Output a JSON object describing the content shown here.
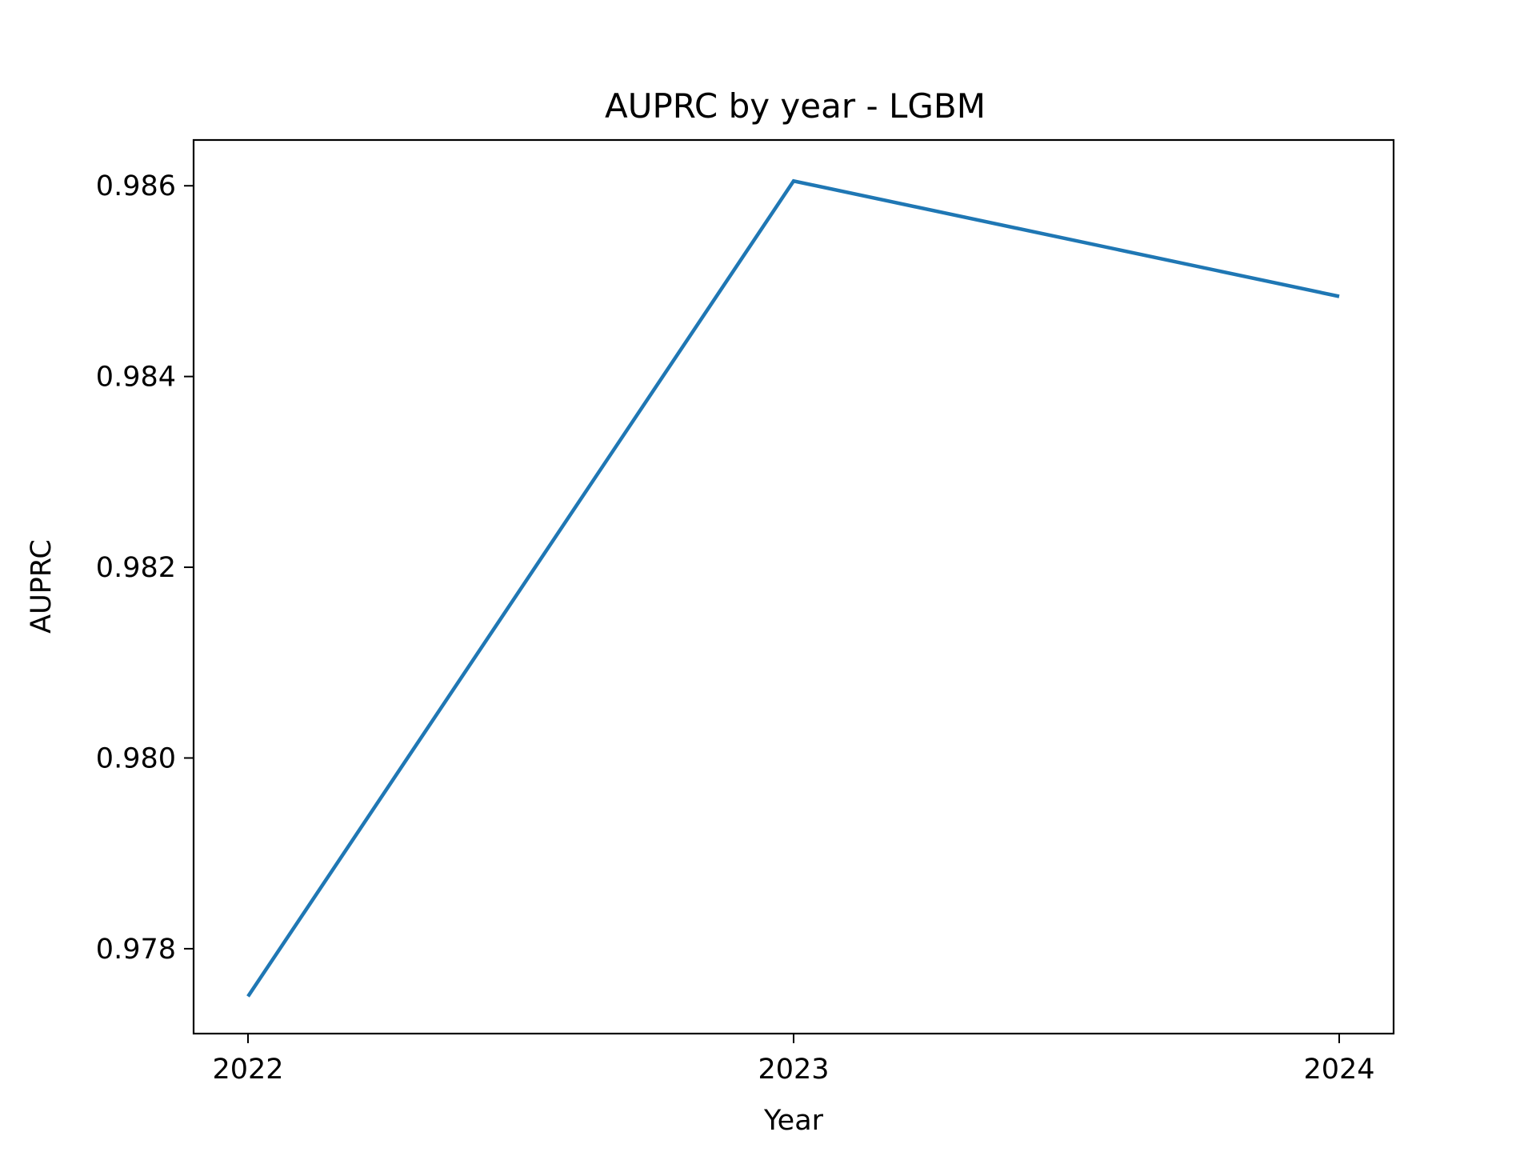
{
  "chart_data": {
    "type": "line",
    "title": "AUPRC by year - LGBM",
    "xlabel": "Year",
    "ylabel": "AUPRC",
    "categories": [
      "2022",
      "2023",
      "2024"
    ],
    "series": [
      {
        "values": [
          0.9775,
          0.98605,
          0.98484
        ],
        "color": "#1f77b4"
      }
    ],
    "yticks": [
      0.978,
      0.98,
      0.982,
      0.984,
      0.986
    ],
    "ytick_labels": [
      "0.978",
      "0.980",
      "0.982",
      "0.984",
      "0.986"
    ],
    "ylim": [
      0.97711,
      0.98648
    ],
    "grid": false,
    "legend": "none"
  }
}
